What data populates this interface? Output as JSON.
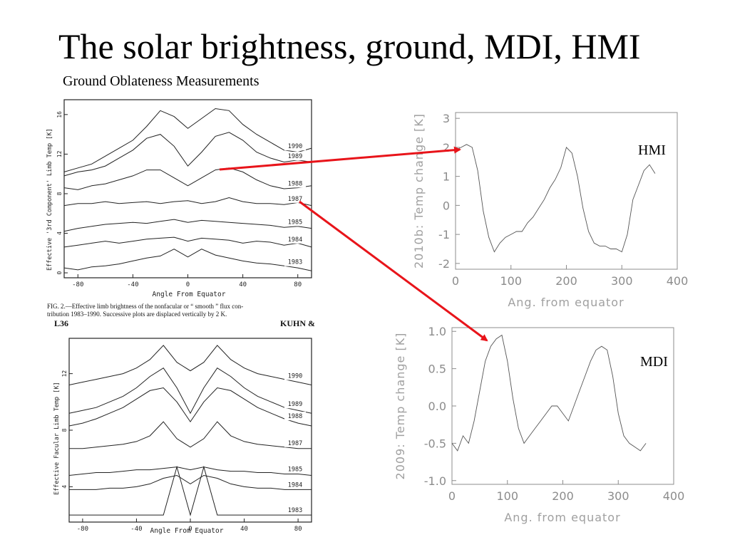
{
  "slide": {
    "title": "The solar brightness, ground, MDI, HMI",
    "subtitle": "Ground Oblateness Measurements"
  },
  "labels": {
    "hmi": "HMI",
    "mdi": "MDI"
  },
  "colors": {
    "arrow": "#e8141a",
    "modern_axis": "#8c8c8c",
    "scan_ink": "#222222"
  },
  "scan_top": {
    "ylabel": "Effective '3rd Component' Limb Temp [K]",
    "xlabel": "Angle From Equator",
    "caption_line1": "FIG. 2.—Effective limb brightness of the nonfacular or “ smooth ” flux con-",
    "caption_line2": "tribution 1983–1990. Successive plots are displaced vertically by 2 K.",
    "xticks": [
      "-80",
      "-40",
      "0",
      "40",
      "80"
    ],
    "yticks": [
      "0",
      "4",
      "8",
      "12",
      "16"
    ]
  },
  "scan_bottom": {
    "header_left": "L36",
    "header_right": "KUHN &",
    "ylabel": "Effective Facular Limb Temp [K]",
    "xlabel": "Angle From Equator",
    "xticks": [
      "-80",
      "-40",
      "0",
      "40",
      "80"
    ],
    "yticks": [
      "4",
      "8",
      "12"
    ]
  },
  "chart_data": [
    {
      "type": "line",
      "title": "",
      "xlabel": "Angle From Equator",
      "ylabel": "Effective '3rd Component' Limb Temp [K]",
      "xlim": [
        -90,
        90
      ],
      "ylim": [
        -0.5,
        17.5
      ],
      "x": [
        -90,
        -80,
        -70,
        -60,
        -50,
        -40,
        -30,
        -20,
        -10,
        0,
        10,
        20,
        30,
        40,
        50,
        60,
        70,
        80,
        90
      ],
      "series": [
        {
          "name": "1983",
          "values": [
            0.5,
            0.3,
            0.6,
            0.7,
            0.9,
            1.2,
            1.5,
            1.7,
            2.4,
            1.6,
            2.4,
            1.8,
            1.5,
            1.2,
            1.0,
            0.9,
            0.7,
            0.5,
            0.2
          ]
        },
        {
          "name": "1984",
          "values": [
            2.6,
            2.8,
            3.0,
            3.2,
            3.0,
            3.2,
            3.4,
            3.5,
            3.6,
            3.2,
            3.5,
            3.4,
            3.3,
            3.0,
            3.2,
            3.1,
            2.8,
            3.0,
            2.6
          ]
        },
        {
          "name": "1985",
          "values": [
            4.2,
            4.5,
            4.7,
            4.9,
            5.0,
            5.1,
            5.0,
            5.2,
            5.4,
            5.1,
            5.3,
            5.2,
            5.1,
            5.0,
            4.9,
            4.8,
            4.6,
            4.7,
            4.5
          ]
        },
        {
          "name": "1987",
          "values": [
            6.8,
            7.0,
            7.0,
            7.2,
            7.0,
            7.1,
            7.2,
            7.0,
            7.2,
            7.3,
            7.0,
            7.2,
            7.6,
            7.2,
            7.0,
            7.0,
            6.9,
            7.1,
            6.8
          ]
        },
        {
          "name": "1988",
          "values": [
            8.6,
            8.4,
            8.8,
            9.0,
            9.4,
            9.8,
            10.4,
            10.4,
            9.6,
            8.8,
            9.6,
            10.4,
            10.6,
            10.2,
            9.4,
            8.8,
            8.5,
            8.6,
            8.8
          ]
        },
        {
          "name": "1989",
          "values": [
            9.8,
            10.2,
            10.4,
            10.8,
            11.6,
            12.4,
            13.6,
            14.0,
            12.8,
            10.8,
            12.2,
            13.8,
            14.2,
            13.4,
            12.2,
            11.6,
            11.2,
            11.4,
            11.2
          ]
        },
        {
          "name": "1990",
          "values": [
            10.2,
            10.6,
            11.0,
            11.8,
            12.6,
            13.4,
            14.8,
            16.4,
            15.8,
            14.6,
            15.6,
            16.6,
            16.4,
            15.0,
            14.0,
            13.2,
            12.4,
            12.2,
            12.6
          ]
        }
      ]
    },
    {
      "type": "line",
      "title": "",
      "xlabel": "Angle From Equator",
      "ylabel": "Effective Facular Limb Temp [K]",
      "xlim": [
        -90,
        90
      ],
      "ylim": [
        1.5,
        14.5
      ],
      "x": [
        -90,
        -80,
        -70,
        -60,
        -50,
        -40,
        -30,
        -20,
        -10,
        0,
        10,
        20,
        30,
        40,
        50,
        60,
        70,
        80,
        90
      ],
      "series": [
        {
          "name": "1983",
          "values": [
            2.0,
            2.0,
            2.0,
            2.0,
            2.0,
            2.0,
            2.0,
            2.0,
            5.4,
            2.0,
            5.4,
            2.0,
            2.0,
            2.0,
            2.0,
            2.0,
            2.0,
            2.0,
            2.0
          ]
        },
        {
          "name": "1984",
          "values": [
            3.8,
            3.8,
            3.8,
            3.9,
            3.9,
            4.0,
            4.2,
            4.6,
            4.8,
            4.2,
            4.8,
            4.6,
            4.2,
            4.0,
            3.9,
            3.9,
            3.8,
            3.8,
            3.8
          ]
        },
        {
          "name": "1985",
          "values": [
            4.8,
            4.9,
            5.0,
            5.0,
            5.1,
            5.2,
            5.2,
            5.3,
            5.4,
            5.2,
            5.4,
            5.2,
            5.1,
            5.1,
            5.0,
            5.0,
            4.9,
            4.9,
            4.8
          ]
        },
        {
          "name": "1987",
          "values": [
            6.7,
            6.7,
            6.8,
            6.9,
            7.0,
            7.2,
            7.6,
            8.6,
            7.4,
            6.8,
            7.4,
            8.6,
            7.6,
            7.2,
            7.0,
            6.9,
            6.8,
            6.7,
            6.7
          ]
        },
        {
          "name": "1988",
          "values": [
            8.3,
            8.5,
            8.8,
            9.2,
            9.6,
            10.2,
            10.8,
            11.0,
            10.0,
            8.6,
            10.0,
            11.0,
            10.8,
            10.2,
            9.6,
            9.2,
            8.8,
            8.5,
            8.3
          ]
        },
        {
          "name": "1989",
          "values": [
            9.2,
            9.4,
            9.6,
            10.0,
            10.4,
            11.0,
            11.8,
            12.4,
            11.0,
            9.2,
            11.0,
            12.4,
            11.8,
            11.0,
            10.4,
            10.0,
            9.6,
            9.4,
            9.2
          ]
        },
        {
          "name": "1990",
          "values": [
            11.2,
            11.4,
            11.6,
            11.8,
            12.0,
            12.4,
            13.0,
            14.0,
            12.8,
            12.2,
            12.8,
            14.0,
            13.0,
            12.4,
            12.0,
            11.8,
            11.6,
            11.4,
            11.2
          ]
        }
      ]
    },
    {
      "type": "line",
      "title": "",
      "xlabel": "Ang. from equator",
      "ylabel": "2010b: Temp change [K]",
      "xlim": [
        0,
        400
      ],
      "ylim": [
        -2.2,
        3.2
      ],
      "xticks": [
        0,
        100,
        200,
        300,
        400
      ],
      "yticks": [
        -2,
        -1,
        0,
        1,
        2,
        3
      ],
      "x": [
        0,
        10,
        20,
        30,
        40,
        50,
        60,
        70,
        80,
        90,
        100,
        110,
        120,
        130,
        140,
        150,
        160,
        170,
        180,
        190,
        200,
        210,
        220,
        230,
        240,
        250,
        260,
        270,
        280,
        290,
        300,
        310,
        320,
        330,
        340,
        350,
        360
      ],
      "series": [
        {
          "values": [
            1.9,
            2.0,
            2.1,
            2.0,
            1.2,
            -0.2,
            -1.1,
            -1.6,
            -1.3,
            -1.1,
            -1.0,
            -0.9,
            -0.9,
            -0.6,
            -0.4,
            -0.1,
            0.2,
            0.6,
            0.9,
            1.3,
            2.0,
            1.8,
            1.0,
            -0.1,
            -0.9,
            -1.3,
            -1.4,
            -1.4,
            -1.5,
            -1.5,
            -1.6,
            -1.0,
            0.2,
            0.7,
            1.2,
            1.4,
            1.1
          ]
        }
      ]
    },
    {
      "type": "line",
      "title": "",
      "xlabel": "Ang. from equator",
      "ylabel": "2009: Temp change [K]",
      "xlim": [
        0,
        400
      ],
      "ylim": [
        -1.05,
        1.05
      ],
      "xticks": [
        0,
        100,
        200,
        300,
        400
      ],
      "yticks": [
        -1.0,
        -0.5,
        0.0,
        0.5,
        1.0
      ],
      "x": [
        0,
        10,
        20,
        30,
        40,
        50,
        60,
        70,
        80,
        90,
        100,
        110,
        120,
        130,
        140,
        150,
        160,
        170,
        180,
        190,
        200,
        210,
        220,
        230,
        240,
        250,
        260,
        270,
        280,
        290,
        300,
        310,
        320,
        330,
        340,
        350
      ],
      "series": [
        {
          "values": [
            -0.5,
            -0.6,
            -0.4,
            -0.5,
            -0.2,
            0.2,
            0.6,
            0.8,
            0.9,
            0.95,
            0.6,
            0.1,
            -0.3,
            -0.5,
            -0.4,
            -0.3,
            -0.2,
            -0.1,
            0.0,
            0.0,
            -0.1,
            -0.2,
            0.0,
            0.2,
            0.4,
            0.6,
            0.75,
            0.8,
            0.75,
            0.4,
            -0.1,
            -0.4,
            -0.5,
            -0.55,
            -0.6,
            -0.5
          ]
        }
      ]
    }
  ]
}
